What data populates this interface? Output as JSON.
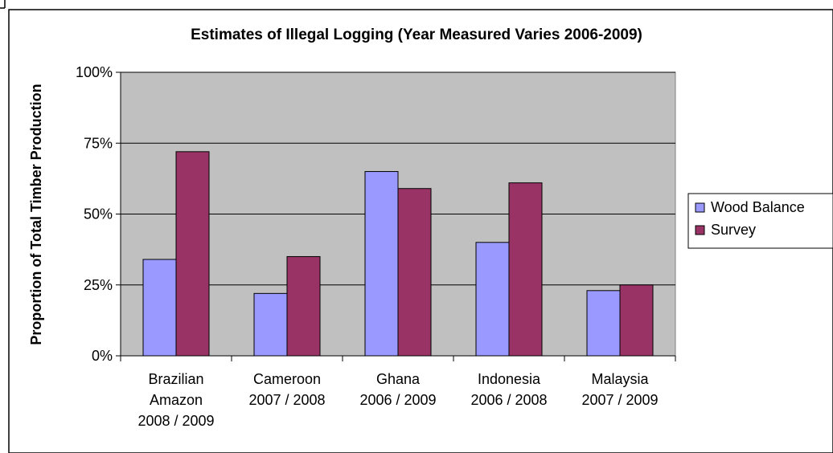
{
  "chart_data": {
    "type": "bar",
    "title": "Estimates of Illegal Logging (Year Measured Varies 2006-2009)",
    "xlabel": "",
    "ylabel": "Proportion of Total Timber Production",
    "ylim": [
      0,
      100
    ],
    "yticks": [
      "0%",
      "25%",
      "50%",
      "75%",
      "100%"
    ],
    "ytick_values": [
      0,
      25,
      50,
      75,
      100
    ],
    "grid": true,
    "legend_position": "right",
    "categories": [
      [
        "Brazilian",
        "Amazon",
        "2008 / 2009"
      ],
      [
        "Cameroon",
        "2007 / 2008"
      ],
      [
        "Ghana",
        "2006 / 2009"
      ],
      [
        "Indonesia",
        "2006 / 2008"
      ],
      [
        "Malaysia",
        "2007 / 2009"
      ]
    ],
    "series": [
      {
        "name": "Wood Balance",
        "color": "#9999ff",
        "values": [
          34,
          22,
          65,
          40,
          23
        ]
      },
      {
        "name": "Survey",
        "color": "#993366",
        "values": [
          72,
          35,
          59,
          61,
          25
        ]
      }
    ],
    "plot_background": "#c0c0c0"
  }
}
